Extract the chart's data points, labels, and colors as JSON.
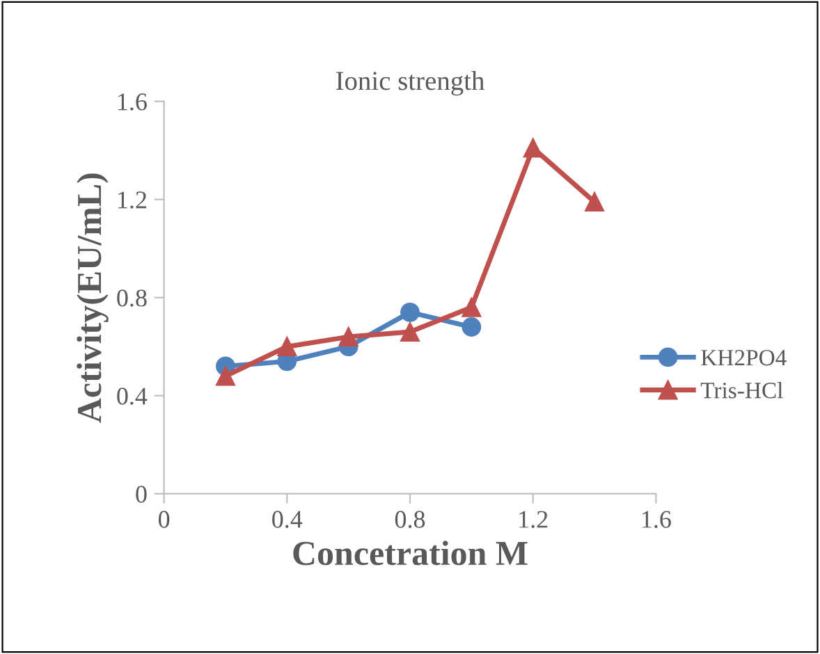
{
  "chart_data": {
    "type": "line",
    "title": "Ionic strength",
    "xlabel": "Concetration M",
    "ylabel": "Activity(EU/mL)",
    "x": [
      0.2,
      0.4,
      0.6,
      0.8,
      1.0,
      1.2,
      1.4
    ],
    "series": [
      {
        "name": "KH2PO4",
        "color": "#4f81bd",
        "marker": "circle",
        "x": [
          0.2,
          0.4,
          0.6,
          0.8,
          1.0
        ],
        "values": [
          0.52,
          0.54,
          0.6,
          0.74,
          0.68
        ]
      },
      {
        "name": "Tris-HCl",
        "color": "#c0504d",
        "marker": "triangle",
        "values": [
          0.48,
          0.6,
          0.64,
          0.66,
          0.76,
          1.41,
          1.19
        ]
      }
    ],
    "xlim": [
      0,
      1.6
    ],
    "xticks": [
      0,
      0.4,
      0.8,
      1.2,
      1.6
    ],
    "ylim": [
      0,
      1.6
    ],
    "yticks": [
      0,
      0.4,
      0.8,
      1.2,
      1.6
    ],
    "grid": false,
    "legend": "right",
    "line_style": "solid"
  }
}
